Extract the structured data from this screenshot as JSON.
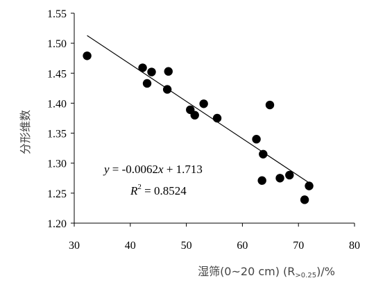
{
  "chart_data": {
    "type": "scatter",
    "ylabel": "分形维数",
    "xlabel": {
      "main": "湿筛(0~20 cm) (R",
      "sub": ">0.25",
      "tail": ")/%"
    },
    "xlim": [
      30,
      80
    ],
    "ylim": [
      1.2,
      1.55
    ],
    "xticks": [
      "30",
      "40",
      "50",
      "60",
      "70",
      "80"
    ],
    "yticks": [
      "1.20",
      "1.25",
      "1.30",
      "1.35",
      "1.40",
      "1.45",
      "1.50",
      "1.55"
    ],
    "grid": false,
    "points": [
      {
        "x": 32.3,
        "y": 1.479
      },
      {
        "x": 42.2,
        "y": 1.459
      },
      {
        "x": 43.0,
        "y": 1.433
      },
      {
        "x": 43.8,
        "y": 1.452
      },
      {
        "x": 46.6,
        "y": 1.423
      },
      {
        "x": 46.8,
        "y": 1.453
      },
      {
        "x": 50.7,
        "y": 1.389
      },
      {
        "x": 51.5,
        "y": 1.38
      },
      {
        "x": 53.1,
        "y": 1.399
      },
      {
        "x": 55.5,
        "y": 1.375
      },
      {
        "x": 62.5,
        "y": 1.34
      },
      {
        "x": 63.5,
        "y": 1.271
      },
      {
        "x": 63.7,
        "y": 1.315
      },
      {
        "x": 64.9,
        "y": 1.397
      },
      {
        "x": 66.7,
        "y": 1.275
      },
      {
        "x": 68.4,
        "y": 1.28
      },
      {
        "x": 71.1,
        "y": 1.239
      },
      {
        "x": 71.9,
        "y": 1.262
      }
    ],
    "trendline": {
      "slope": -0.0062,
      "intercept": 1.713,
      "x_range": [
        32.3,
        72.0
      ]
    },
    "annotation": {
      "equation_y": "y",
      "equation_rest": " = -0.0062",
      "equation_x": "x",
      "equation_tail": " + 1.713",
      "r2_label": "R",
      "r2_sup": "2",
      "r2_value": " = 0.8524"
    }
  }
}
